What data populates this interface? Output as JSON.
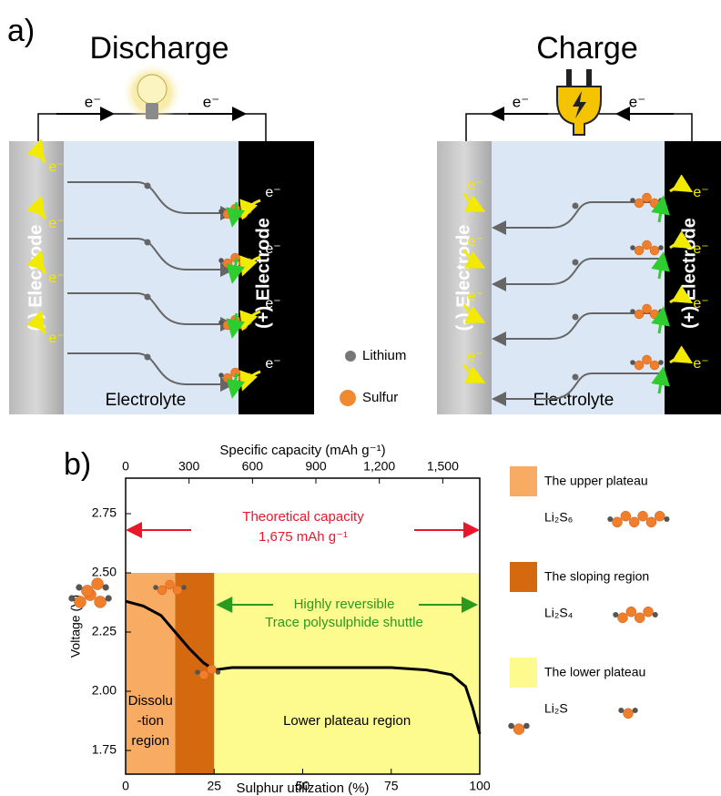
{
  "panel_a": {
    "label": "a)",
    "discharge": {
      "title": "Discharge"
    },
    "charge": {
      "title": "Charge"
    },
    "electron": "e⁻",
    "negative_electrode": "(-) Electrode",
    "positive_electrode": "(+) Electrode",
    "electrolyte": "Electrolyte",
    "legend": [
      "Lithium",
      "Sulfur"
    ]
  },
  "chart_data": {
    "type": "line",
    "panel_label": "b)",
    "x_label": "Sulphur utilization (%)",
    "y_label": "Voltage (V)",
    "x2_label": "Specific capacity (mAh g⁻¹)",
    "x": [
      0,
      5,
      10,
      14,
      18,
      22,
      25,
      30,
      50,
      75,
      85,
      92,
      96,
      98,
      100
    ],
    "values": [
      2.38,
      2.36,
      2.32,
      2.25,
      2.18,
      2.12,
      2.09,
      2.1,
      2.1,
      2.1,
      2.09,
      2.07,
      2.02,
      1.93,
      1.82
    ],
    "color": "#000000",
    "xlim": [
      0,
      100
    ],
    "xticks": [
      0,
      25,
      50,
      75,
      100
    ],
    "ylim": [
      1.65,
      2.9
    ],
    "yticks": [
      1.75,
      {
        "value": 2,
        "label": "2.00"
      },
      2.25,
      {
        "value": 2.5,
        "label": "2.50"
      },
      2.75
    ],
    "x2lim": [
      0,
      1675
    ],
    "x2ticks": [
      0,
      300,
      600,
      900,
      {
        "value": 1200,
        "label": "1,200"
      },
      {
        "value": 1500,
        "label": "1,500"
      }
    ],
    "regions": [
      {
        "from": 0,
        "to": 14,
        "top": 2.5,
        "color": "#f8ab62",
        "label": [
          "Dissolu",
          "-tion",
          "region"
        ],
        "legend": "The upper plateau",
        "species": "Li₂S₆"
      },
      {
        "from": 14,
        "to": 25,
        "top": 2.5,
        "color": "#d4690f",
        "legend": "The sloping region",
        "species": "Li₂S₄"
      },
      {
        "from": 25,
        "to": 100,
        "top": 2.5,
        "color": "#fdfa8e",
        "label": [
          "Lower plateau region"
        ],
        "legend": "The lower plateau",
        "species": "Li₂S"
      }
    ],
    "annotations": {
      "theoretical": {
        "lines": [
          "Theoretical capacity",
          "1,675 mAh g⁻¹"
        ],
        "color": "#e8182a"
      },
      "reversible": {
        "lines": [
          "Highly reversible",
          "Trace polysulphide shuttle"
        ],
        "color": "#2a9a1e"
      }
    }
  }
}
